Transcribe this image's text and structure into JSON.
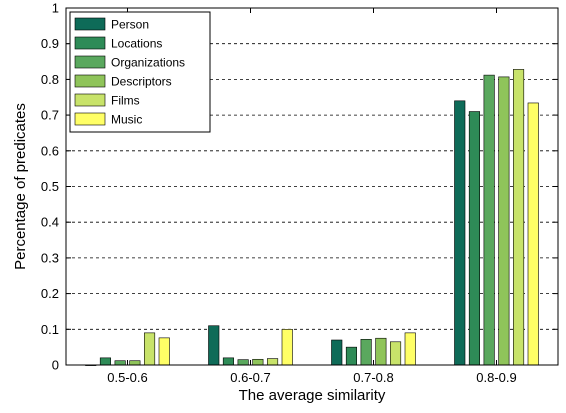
{
  "chart_data": {
    "type": "bar",
    "title": "",
    "xlabel": "The average similarity",
    "ylabel": "Percentage of predicates",
    "categories": [
      "0.5-0.6",
      "0.6-0.7",
      "0.7-0.8",
      "0.8-0.9"
    ],
    "ylim": [
      0,
      1
    ],
    "yticks": [
      0,
      0.1,
      0.2,
      0.3,
      0.4,
      0.5,
      0.6,
      0.7,
      0.8,
      0.9,
      1
    ],
    "ytick_labels": [
      "0",
      "0.1",
      "0.2",
      "0.3",
      "0.4",
      "0.5",
      "0.6",
      "0.7",
      "0.8",
      "0.9",
      "1"
    ],
    "grid": "horizontal dashed",
    "legend_position": "top-left",
    "series": [
      {
        "name": "Person",
        "color": "#0e6b58",
        "values": [
          0.0,
          0.11,
          0.07,
          0.74
        ]
      },
      {
        "name": "Locations",
        "color": "#2e8b57",
        "values": [
          0.02,
          0.02,
          0.05,
          0.71
        ]
      },
      {
        "name": "Organizations",
        "color": "#5aa85e",
        "values": [
          0.012,
          0.015,
          0.072,
          0.812
        ]
      },
      {
        "name": "Descriptors",
        "color": "#8fc45a",
        "values": [
          0.012,
          0.016,
          0.075,
          0.807
        ]
      },
      {
        "name": "Films",
        "color": "#c8e36a",
        "values": [
          0.09,
          0.018,
          0.065,
          0.828
        ]
      },
      {
        "name": "Music",
        "color": "#ffff66",
        "values": [
          0.076,
          0.1,
          0.09,
          0.734
        ]
      }
    ]
  }
}
